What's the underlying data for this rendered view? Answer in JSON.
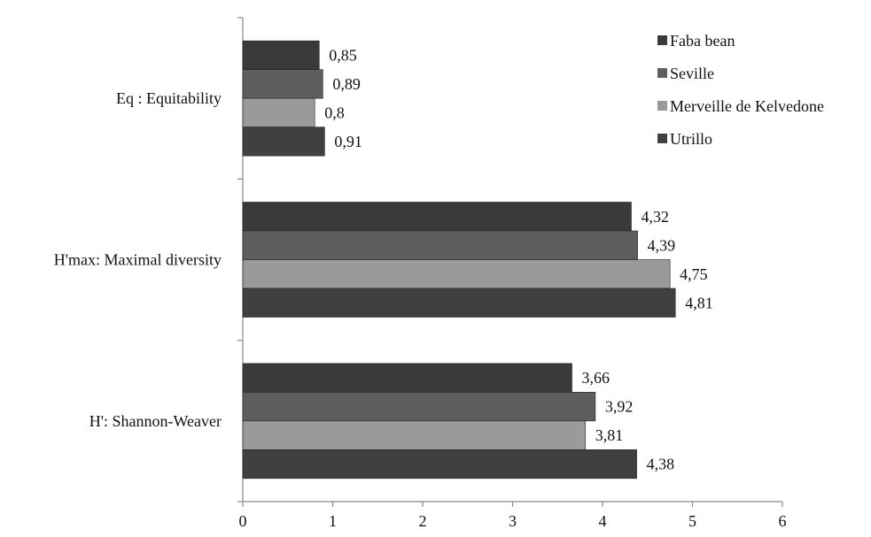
{
  "chart_data": {
    "type": "bar",
    "orientation": "horizontal",
    "categories": [
      "H': Shannon-Weaver",
      "H'max: Maximal diversity",
      "Eq : Equitability"
    ],
    "series": [
      {
        "name": "Faba bean",
        "color": "#3a3a3a",
        "values": [
          3.66,
          4.32,
          0.85
        ],
        "labels": [
          "3,66",
          "4,32",
          "0,85"
        ]
      },
      {
        "name": "Seville",
        "color": "#5e5e5e",
        "values": [
          3.92,
          4.39,
          0.89
        ],
        "labels": [
          "3,92",
          "4,39",
          "0,89"
        ]
      },
      {
        "name": "Merveille de Kelvedone",
        "color": "#9a9a9a",
        "values": [
          3.81,
          4.75,
          0.8
        ],
        "labels": [
          "3,81",
          "4,75",
          "0,8"
        ]
      },
      {
        "name": "Utrillo",
        "color": "#404040",
        "values": [
          4.38,
          4.81,
          0.91
        ],
        "labels": [
          "4,38",
          "4,81",
          "0,91"
        ]
      }
    ],
    "xlim": [
      0,
      6
    ],
    "xticks": [
      "0",
      "1",
      "2",
      "3",
      "4",
      "5",
      "6"
    ],
    "grid": false,
    "legend_position": "top-right",
    "title": "",
    "xlabel": "",
    "ylabel": ""
  }
}
